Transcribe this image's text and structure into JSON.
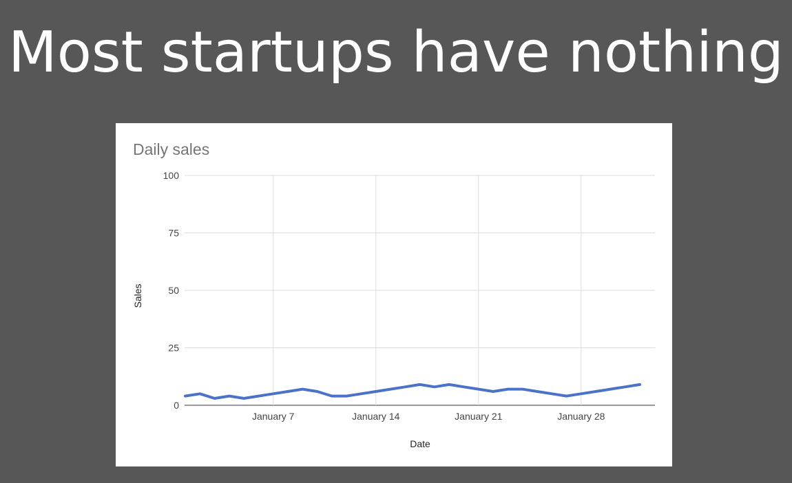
{
  "slide": {
    "title": "Most startups have nothing"
  },
  "colors": {
    "background": "#575757",
    "card": "#ffffff",
    "series": "#4a72c8",
    "grid": "#dddddd"
  },
  "chart_data": {
    "type": "line",
    "title": "Daily sales",
    "xlabel": "Date",
    "ylabel": "Sales",
    "ylim": [
      0,
      100
    ],
    "yticks": [
      0,
      25,
      50,
      75,
      100
    ],
    "xticks": [
      {
        "day": 7,
        "label": "January 7"
      },
      {
        "day": 14,
        "label": "January 14"
      },
      {
        "day": 21,
        "label": "January 21"
      },
      {
        "day": 28,
        "label": "January 28"
      }
    ],
    "grid": true,
    "legend": "none",
    "series": [
      {
        "x": [
          1,
          2,
          3,
          4,
          5,
          6,
          7,
          8,
          9,
          10,
          11,
          12,
          13,
          14,
          15,
          16,
          17,
          18,
          19,
          20,
          21,
          22,
          23,
          24,
          25,
          26,
          27,
          28,
          29,
          30,
          31,
          32
        ],
        "values": [
          4,
          5,
          3,
          4,
          3,
          4,
          5,
          6,
          7,
          6,
          4,
          4,
          5,
          6,
          7,
          8,
          9,
          8,
          9,
          8,
          7,
          6,
          7,
          7,
          6,
          5,
          4,
          5,
          6,
          7,
          8,
          9
        ]
      }
    ]
  }
}
